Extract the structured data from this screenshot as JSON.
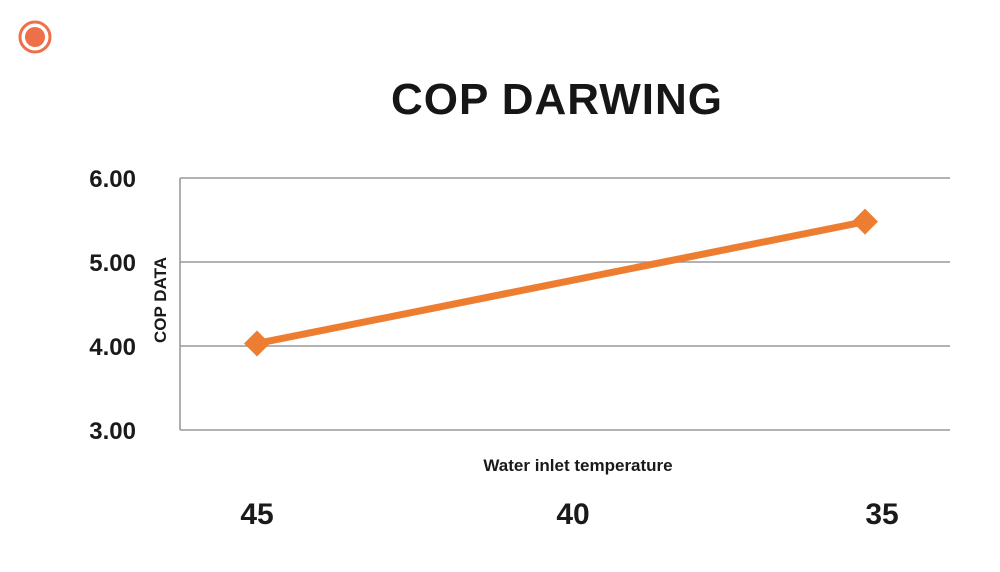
{
  "colors": {
    "series": "#ed7d31",
    "grid": "#9a9a9a",
    "text": "#1a1a1a",
    "badge_fill": "#ef6f49",
    "badge_ring": "#ef6f49"
  },
  "badge": {
    "icon": "orange-ring-dot-icon"
  },
  "chart_data": {
    "type": "line",
    "title": "COP DARWING",
    "xlabel": "Water inlet temperature",
    "ylabel": "COP DATA",
    "categories": [
      "45",
      "40",
      "35"
    ],
    "x": [
      45,
      35
    ],
    "xlim": [
      45,
      35
    ],
    "series": [
      {
        "values": [
          4.03,
          5.48
        ],
        "marker": "diamond"
      }
    ],
    "ylim": [
      3.0,
      6.0
    ],
    "yticks": [
      3.0,
      4.0,
      5.0,
      6.0
    ],
    "ytick_labels": [
      "3.00",
      "4.00",
      "5.00",
      "6.00"
    ],
    "grid": true
  }
}
